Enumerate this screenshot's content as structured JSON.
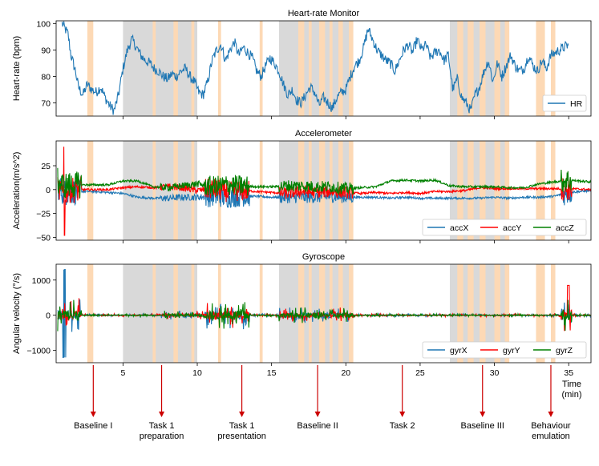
{
  "shading": {
    "gray": [
      [
        5.0,
        10.0
      ],
      [
        15.5,
        20.5
      ],
      [
        27.0,
        31.0
      ]
    ],
    "orange": [
      [
        2.6,
        3.0
      ],
      [
        7.0,
        7.2
      ],
      [
        8.4,
        8.7
      ],
      [
        9.6,
        9.8
      ],
      [
        11.4,
        11.6
      ],
      [
        14.2,
        14.4
      ],
      [
        16.8,
        17.2
      ],
      [
        17.5,
        17.7
      ],
      [
        18.2,
        18.6
      ],
      [
        18.9,
        19.1
      ],
      [
        19.5,
        19.8
      ],
      [
        20.2,
        20.5
      ],
      [
        27.5,
        27.9
      ],
      [
        28.2,
        28.6
      ],
      [
        29.0,
        29.4
      ],
      [
        30.0,
        30.4
      ],
      [
        30.7,
        31.0
      ],
      [
        32.8,
        33.4
      ],
      [
        33.8,
        34.1
      ]
    ],
    "gray_color": "#d9d9d9",
    "orange_color": "#fdd9b5"
  },
  "chart_data": [
    {
      "type": "line",
      "title": "Heart-rate Monitor",
      "xlabel": "",
      "ylabel": "Heart-rate (bpm)",
      "xlim": [
        0.5,
        36.5
      ],
      "ylim": [
        65,
        101
      ],
      "yticks": [
        "70",
        "80",
        "90",
        "100"
      ],
      "legend_position": "lower-right",
      "series": [
        {
          "name": "HR",
          "color": "#1f77b4",
          "x": [
            0.9,
            1.0,
            1.3,
            1.5,
            1.8,
            2.0,
            2.3,
            2.6,
            2.9,
            3.2,
            3.5,
            3.8,
            4.1,
            4.4,
            4.7,
            5.0,
            5.3,
            5.6,
            5.9,
            6.2,
            6.5,
            6.8,
            7.1,
            7.4,
            7.7,
            8.0,
            8.3,
            8.6,
            8.9,
            9.2,
            9.5,
            9.8,
            10.1,
            10.4,
            10.7,
            11.0,
            11.3,
            11.6,
            11.9,
            12.2,
            12.5,
            12.8,
            13.1,
            13.4,
            13.7,
            14.0,
            14.3,
            14.6,
            14.9,
            15.2,
            15.5,
            15.8,
            16.1,
            16.4,
            16.7,
            17.0,
            17.3,
            17.6,
            17.9,
            18.2,
            18.5,
            18.8,
            19.1,
            19.4,
            19.7,
            20.0,
            20.3,
            20.6,
            20.9,
            21.2,
            21.5,
            21.8,
            22.1,
            22.4,
            22.7,
            23.0,
            23.3,
            23.6,
            23.9,
            24.2,
            24.5,
            24.8,
            25.1,
            25.4,
            25.7,
            26.0,
            26.3,
            26.6,
            26.9,
            27.2,
            27.5,
            27.8,
            28.1,
            28.4,
            28.7,
            29.0,
            29.3,
            29.6,
            29.9,
            30.2,
            30.5,
            30.8,
            31.1,
            31.4,
            31.7,
            32.0,
            32.3,
            32.6,
            32.9,
            33.2,
            33.5,
            33.8,
            34.1,
            34.4,
            34.7,
            35.0
          ],
          "values": [
            100,
            99,
            96,
            88,
            82,
            76,
            73,
            77,
            75,
            74,
            76,
            72,
            69,
            67,
            73,
            83,
            90,
            94,
            91,
            88,
            86,
            85,
            83,
            82,
            80,
            79,
            81,
            80,
            82,
            83,
            80,
            78,
            74,
            73,
            78,
            86,
            90,
            92,
            86,
            90,
            93,
            88,
            91,
            89,
            87,
            82,
            80,
            84,
            87,
            85,
            82,
            77,
            73,
            75,
            71,
            70,
            73,
            76,
            74,
            69,
            72,
            70,
            68,
            72,
            74,
            75,
            80,
            84,
            86,
            91,
            98,
            94,
            90,
            88,
            86,
            85,
            82,
            86,
            90,
            92,
            89,
            94,
            90,
            92,
            87,
            89,
            90,
            86,
            88,
            75,
            79,
            72,
            70,
            67,
            73,
            76,
            82,
            86,
            78,
            85,
            80,
            84,
            88,
            84,
            82,
            83,
            88,
            84,
            82,
            86,
            83,
            88,
            89,
            90,
            91,
            92
          ]
        }
      ]
    },
    {
      "type": "line",
      "title": "Accelerometer",
      "xlabel": "",
      "ylabel": "Acceleration(m/s^2)",
      "xlim": [
        0.5,
        36.5
      ],
      "ylim": [
        -53,
        51
      ],
      "yticks": [
        "−50",
        "−25",
        "0",
        "25"
      ],
      "legend_position": "lower-right",
      "series": [
        {
          "name": "accX",
          "color": "#1f77b4",
          "x": [
            0.5,
            1.0,
            1.5,
            2.0,
            3.0,
            4.0,
            5.0,
            6.0,
            7.0,
            8.0,
            9.0,
            10.0,
            11.0,
            12.0,
            13.0,
            14.0,
            15.0,
            16.0,
            17.0,
            18.0,
            19.0,
            20.0,
            21.0,
            22.0,
            23.0,
            24.0,
            25.0,
            26.0,
            27.0,
            28.0,
            29.0,
            30.0,
            31.0,
            32.0,
            33.0,
            34.0,
            35.0,
            36.5
          ],
          "values": [
            5,
            -3,
            -2,
            -2,
            -2,
            -3,
            -4,
            -8,
            -9,
            -9,
            -8,
            -8,
            -7,
            -8,
            -7,
            -7,
            -8,
            -8,
            -8,
            -8,
            -7,
            -8,
            -8,
            -8,
            -9,
            -8,
            -9,
            -9,
            -9,
            -9,
            -9,
            -8,
            -9,
            -8,
            -8,
            -7,
            -3,
            -1
          ]
        },
        {
          "name": "accY",
          "color": "#ff0000",
          "x": [
            0.5,
            1.0,
            1.5,
            2.0,
            3.0,
            4.0,
            5.0,
            6.0,
            7.0,
            8.0,
            9.0,
            10.0,
            11.0,
            12.0,
            13.0,
            14.0,
            15.0,
            16.0,
            17.0,
            18.0,
            19.0,
            20.0,
            21.0,
            22.0,
            23.0,
            24.0,
            25.0,
            26.0,
            27.0,
            28.0,
            29.0,
            30.0,
            31.0,
            32.0,
            33.0,
            34.0,
            35.0,
            36.5
          ],
          "values": [
            0,
            -2,
            0,
            0,
            0,
            0,
            2,
            3,
            2,
            3,
            2,
            -1,
            1,
            -2,
            -1,
            -2,
            -3,
            -4,
            -2,
            -3,
            -2,
            -3,
            -4,
            -3,
            -4,
            -3,
            -4,
            -2,
            -2,
            -1,
            2,
            1,
            1,
            1,
            1,
            1,
            1,
            0
          ]
        },
        {
          "name": "accZ",
          "color": "#008000",
          "x": [
            0.5,
            1.0,
            1.5,
            2.0,
            3.0,
            4.0,
            5.0,
            6.0,
            7.0,
            8.0,
            9.0,
            10.0,
            11.0,
            12.0,
            13.0,
            14.0,
            15.0,
            16.0,
            17.0,
            18.0,
            19.0,
            20.0,
            21.0,
            22.0,
            23.0,
            24.0,
            25.0,
            26.0,
            27.0,
            28.0,
            29.0,
            30.0,
            31.0,
            32.0,
            33.0,
            34.0,
            35.0,
            36.5
          ],
          "values": [
            10,
            4,
            5,
            5,
            5,
            5,
            9,
            9,
            3,
            2,
            4,
            6,
            3,
            5,
            4,
            3,
            3,
            4,
            4,
            3,
            3,
            1,
            2,
            3,
            9,
            10,
            9,
            10,
            4,
            3,
            3,
            3,
            2,
            2,
            6,
            8,
            10,
            8
          ]
        }
      ]
    },
    {
      "type": "line",
      "title": "Gyroscope",
      "xlabel": "",
      "ylabel": "Angular velocity (°/s)",
      "xlim": [
        0.5,
        36.5
      ],
      "ylim": [
        -1350,
        1450
      ],
      "yticks": [
        "−1000",
        "0",
        "1000"
      ],
      "xticks": [
        "5",
        "10",
        "15",
        "20",
        "25",
        "30",
        "35"
      ],
      "xtick_values": [
        5,
        10,
        15,
        20,
        25,
        30,
        35
      ],
      "x_unit_label": "Time\n(min)",
      "legend_position": "lower-right",
      "series": [
        {
          "name": "gyrX",
          "color": "#1f77b4",
          "x": [
            0.5,
            36.5
          ],
          "values": [
            0,
            0
          ]
        },
        {
          "name": "gyrY",
          "color": "#ff0000",
          "x": [
            0.5,
            36.5
          ],
          "values": [
            0,
            0
          ]
        },
        {
          "name": "gyrZ",
          "color": "#008000",
          "x": [
            0.5,
            36.5
          ],
          "values": [
            0,
            0
          ]
        }
      ]
    }
  ],
  "phases": [
    {
      "label": "Baseline I",
      "x": 3.0
    },
    {
      "label": "Task 1\npreparation",
      "x": 7.6
    },
    {
      "label": "Task 1\npresentation",
      "x": 13.0
    },
    {
      "label": "Baseline II",
      "x": 18.1
    },
    {
      "label": "Task 2",
      "x": 23.8
    },
    {
      "label": "Baseline III",
      "x": 29.2
    },
    {
      "label": "Behaviour\nemulation",
      "x": 33.8
    }
  ]
}
